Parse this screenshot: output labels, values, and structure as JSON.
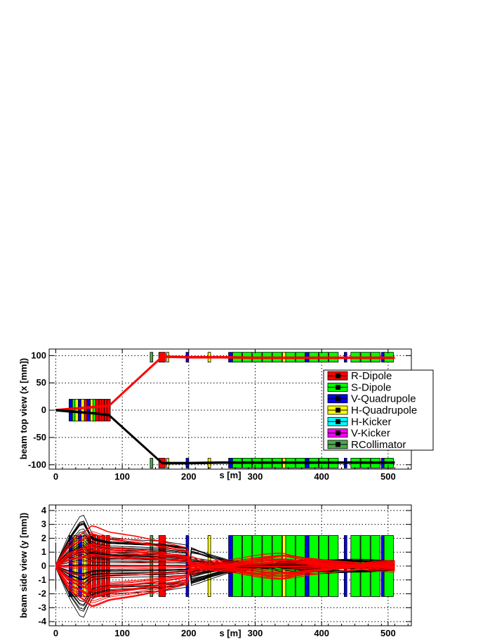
{
  "chart_data": [
    {
      "type": "line",
      "id": "top",
      "ylabel": "beam top view (x [mm])",
      "xlabel": "s [m]",
      "xlim": [
        -10,
        535
      ],
      "ylim": [
        -108,
        112
      ],
      "xticks": [
        0,
        100,
        200,
        300,
        400,
        500
      ],
      "yticks": [
        -100,
        -50,
        0,
        50,
        100
      ],
      "grid": true,
      "legend": {
        "placement": "right",
        "entries": [
          {
            "label": "R-Dipole",
            "color": "#ff0000"
          },
          {
            "label": "S-Dipole",
            "color": "#00ff00"
          },
          {
            "label": "V-Quadrupole",
            "color": "#0000ff"
          },
          {
            "label": "H-Quadrupole",
            "color": "#ffff00"
          },
          {
            "label": "H-Kicker",
            "color": "#00ffff"
          },
          {
            "label": "V-Kicker",
            "color": "#ff00ff"
          },
          {
            "label": "RCollimator",
            "color": "#4fa84f"
          }
        ]
      },
      "series": [
        {
          "color": "#ff0000",
          "x": [
            0,
            20,
            40,
            60,
            80,
            160,
            200,
            250,
            300,
            350,
            400,
            450,
            510
          ],
          "y": [
            0,
            2,
            4,
            6,
            8,
            98,
            97,
            97,
            96,
            96,
            96,
            96,
            96
          ]
        },
        {
          "color": "#000000",
          "x": [
            0,
            20,
            40,
            60,
            80,
            160,
            200,
            250,
            300,
            350,
            400,
            450,
            510
          ],
          "y": [
            0,
            -2,
            -4,
            -6,
            -9,
            -97,
            -97,
            -96,
            -96,
            -96,
            -96,
            -96,
            -96
          ]
        }
      ]
    },
    {
      "type": "line",
      "id": "side",
      "ylabel": "beam side view (y [mm])",
      "xlabel": "s [m]",
      "xlim": [
        -10,
        535
      ],
      "ylim": [
        -4.3,
        4.4
      ],
      "xticks": [
        0,
        100,
        200,
        300,
        400,
        500
      ],
      "yticks": [
        -4,
        -3,
        -2,
        -1,
        0,
        1,
        2,
        3,
        4
      ],
      "grid": true,
      "envelope": {
        "s": [
          0,
          20,
          40,
          55,
          80,
          120,
          160,
          200,
          230,
          260,
          300,
          340,
          380,
          420,
          460,
          510
        ],
        "black_max": [
          0.1,
          2.3,
          3.9,
          2.3,
          2.0,
          1.9,
          1.8,
          1.5,
          1.0,
          0.6,
          0.5,
          0.7,
          0.6,
          0.5,
          0.5,
          0.5
        ],
        "red_max": [
          0.1,
          1.8,
          2.4,
          3.0,
          2.5,
          2.2,
          1.8,
          1.3,
          0.9,
          0.6,
          0.8,
          1.0,
          0.7,
          0.6,
          0.7,
          0.5
        ]
      }
    }
  ],
  "top_elements": {
    "entry_blocks": [
      {
        "s": 20,
        "w": 5,
        "c": "#0000ff"
      },
      {
        "s": 25,
        "w": 4,
        "c": "#00ff00"
      },
      {
        "s": 29,
        "w": 5,
        "c": "#ffff00"
      },
      {
        "s": 34,
        "w": 4,
        "c": "#0000ff"
      },
      {
        "s": 38,
        "w": 5,
        "c": "#ffff00"
      },
      {
        "s": 43,
        "w": 4,
        "c": "#ff0000"
      },
      {
        "s": 47,
        "w": 5,
        "c": "#0000ff"
      },
      {
        "s": 52,
        "w": 4,
        "c": "#ffff00"
      },
      {
        "s": 56,
        "w": 4,
        "c": "#00ff00"
      },
      {
        "s": 60,
        "w": 5,
        "c": "#ff0000"
      },
      {
        "s": 65,
        "w": 4,
        "c": "#ff0000"
      },
      {
        "s": 69,
        "w": 4,
        "c": "#ff0000"
      },
      {
        "s": 73,
        "w": 4,
        "c": "#ff0000"
      },
      {
        "s": 77,
        "w": 5,
        "c": "#ff0000"
      }
    ],
    "arm_blocks": [
      {
        "s": 142,
        "w": 4,
        "c": "#4fa84f"
      },
      {
        "s": 155,
        "w": 10,
        "c": "#ff0000"
      },
      {
        "s": 167,
        "w": 3,
        "c": "#ffff00"
      },
      {
        "s": 196,
        "w": 4,
        "c": "#0000ff"
      },
      {
        "s": 229,
        "w": 4,
        "c": "#ffff00"
      },
      {
        "s": 260,
        "w": 6,
        "c": "#0000ff"
      },
      {
        "s": 266,
        "w": 14,
        "c": "#00ff00"
      },
      {
        "s": 281,
        "w": 14,
        "c": "#00ff00"
      },
      {
        "s": 296,
        "w": 14,
        "c": "#00ff00"
      },
      {
        "s": 311,
        "w": 14,
        "c": "#00ff00"
      },
      {
        "s": 326,
        "w": 14,
        "c": "#00ff00"
      },
      {
        "s": 341,
        "w": 5,
        "c": "#ffff00"
      },
      {
        "s": 346,
        "w": 14,
        "c": "#00ff00"
      },
      {
        "s": 361,
        "w": 14,
        "c": "#00ff00"
      },
      {
        "s": 376,
        "w": 5,
        "c": "#0000ff"
      },
      {
        "s": 381,
        "w": 14,
        "c": "#00ff00"
      },
      {
        "s": 396,
        "w": 14,
        "c": "#00ff00"
      },
      {
        "s": 411,
        "w": 14,
        "c": "#00ff00"
      },
      {
        "s": 434,
        "w": 4,
        "c": "#0000ff"
      },
      {
        "s": 444,
        "w": 14,
        "c": "#00ff00"
      },
      {
        "s": 459,
        "w": 14,
        "c": "#00ff00"
      },
      {
        "s": 474,
        "w": 14,
        "c": "#00ff00"
      },
      {
        "s": 490,
        "w": 4,
        "c": "#0000ff"
      },
      {
        "s": 494,
        "w": 14,
        "c": "#00ff00"
      }
    ]
  },
  "side_elements": [
    {
      "s": 20,
      "w": 5,
      "c": "#0000ff",
      "h": 2.2
    },
    {
      "s": 27,
      "w": 5,
      "c": "#ffff00",
      "h": 2.2
    },
    {
      "s": 34,
      "w": 5,
      "c": "#0000ff",
      "h": 2.2
    },
    {
      "s": 41,
      "w": 5,
      "c": "#ffff00",
      "h": 2.2
    },
    {
      "s": 48,
      "w": 5,
      "c": "#ff0000",
      "h": 2.2
    },
    {
      "s": 55,
      "w": 5,
      "c": "#ff0000",
      "h": 2.2
    },
    {
      "s": 62,
      "w": 5,
      "c": "#ff0000",
      "h": 2.2
    },
    {
      "s": 69,
      "w": 5,
      "c": "#ff0000",
      "h": 2.2
    },
    {
      "s": 76,
      "w": 5,
      "c": "#ff0000",
      "h": 2.2
    },
    {
      "s": 142,
      "w": 4,
      "c": "#4fa84f",
      "h": 2.2
    },
    {
      "s": 155,
      "w": 10,
      "c": "#ff0000",
      "h": 2.2
    },
    {
      "s": 196,
      "w": 4,
      "c": "#0000ff",
      "h": 2.2
    },
    {
      "s": 229,
      "w": 4,
      "c": "#ffff00",
      "h": 2.2
    },
    {
      "s": 260,
      "w": 6,
      "c": "#0000ff",
      "h": 2.2
    },
    {
      "s": 266,
      "w": 14,
      "c": "#00ff00",
      "h": 2.2
    },
    {
      "s": 281,
      "w": 14,
      "c": "#00ff00",
      "h": 2.2
    },
    {
      "s": 296,
      "w": 14,
      "c": "#00ff00",
      "h": 2.2
    },
    {
      "s": 311,
      "w": 14,
      "c": "#00ff00",
      "h": 2.2
    },
    {
      "s": 326,
      "w": 14,
      "c": "#00ff00",
      "h": 2.2
    },
    {
      "s": 341,
      "w": 5,
      "c": "#ffff00",
      "h": 2.2
    },
    {
      "s": 346,
      "w": 14,
      "c": "#00ff00",
      "h": 2.2
    },
    {
      "s": 361,
      "w": 14,
      "c": "#00ff00",
      "h": 2.2
    },
    {
      "s": 376,
      "w": 5,
      "c": "#0000ff",
      "h": 2.2
    },
    {
      "s": 381,
      "w": 14,
      "c": "#00ff00",
      "h": 2.2
    },
    {
      "s": 396,
      "w": 14,
      "c": "#00ff00",
      "h": 2.2
    },
    {
      "s": 411,
      "w": 14,
      "c": "#00ff00",
      "h": 2.2
    },
    {
      "s": 434,
      "w": 4,
      "c": "#0000ff",
      "h": 2.2
    },
    {
      "s": 444,
      "w": 14,
      "c": "#00ff00",
      "h": 2.2
    },
    {
      "s": 459,
      "w": 14,
      "c": "#00ff00",
      "h": 2.2
    },
    {
      "s": 474,
      "w": 14,
      "c": "#00ff00",
      "h": 2.2
    },
    {
      "s": 490,
      "w": 4,
      "c": "#0000ff",
      "h": 2.2
    },
    {
      "s": 494,
      "w": 14,
      "c": "#00ff00",
      "h": 2.2
    }
  ]
}
